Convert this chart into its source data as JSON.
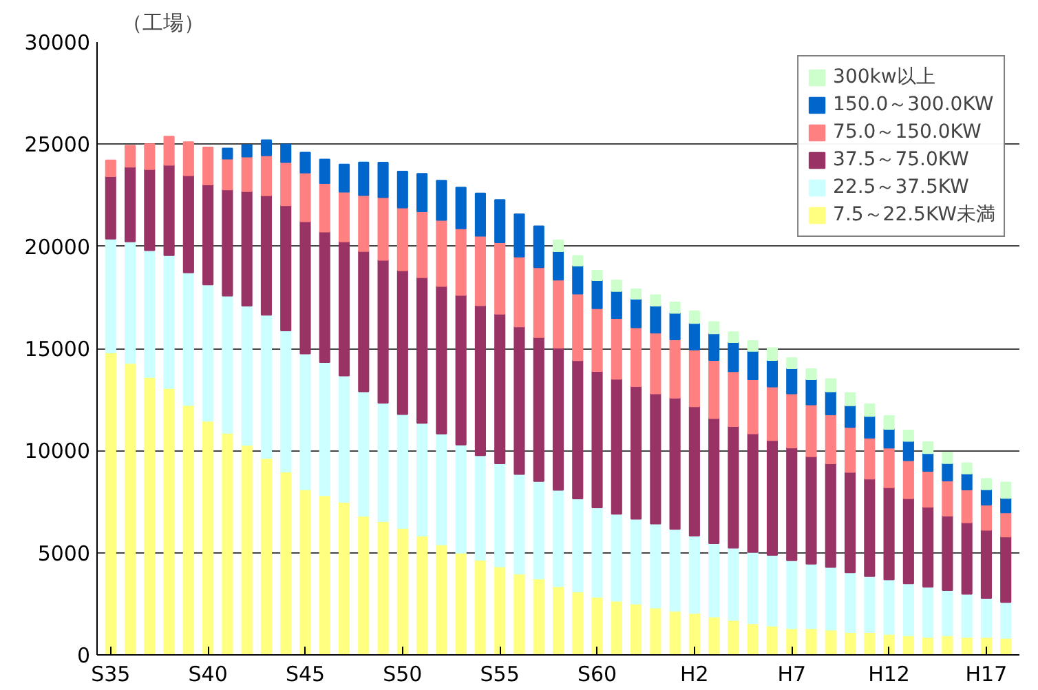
{
  "chart_data": {
    "type": "bar",
    "stacked": true,
    "ylabel": "（工場）",
    "categories": [
      "S35",
      null,
      null,
      null,
      null,
      "S40",
      null,
      null,
      null,
      null,
      "S45",
      null,
      null,
      null,
      null,
      "S50",
      null,
      null,
      null,
      null,
      "S55",
      null,
      null,
      null,
      null,
      "S60",
      null,
      null,
      null,
      null,
      "H2",
      null,
      null,
      null,
      null,
      "H7",
      null,
      null,
      null,
      null,
      "H12",
      null,
      null,
      null,
      null,
      "H17",
      null
    ],
    "ylim": [
      0,
      30000
    ],
    "yticks": [
      0,
      5000,
      10000,
      15000,
      20000,
      25000,
      30000
    ],
    "grid": "y",
    "legend": "top right",
    "series": [
      {
        "name": "7.5～22.5KW未満",
        "color": "#ffff80",
        "values": [
          14800,
          14280,
          13590,
          13050,
          12230,
          11450,
          10860,
          10270,
          9630,
          8970,
          8100,
          7810,
          7480,
          6800,
          6540,
          6210,
          5830,
          5400,
          5000,
          4650,
          4320,
          3970,
          3730,
          3350,
          3090,
          2840,
          2650,
          2500,
          2310,
          2150,
          2050,
          1870,
          1700,
          1540,
          1420,
          1300,
          1300,
          1230,
          1110,
          1110,
          1020,
          950,
          880,
          950,
          880,
          880,
          830
        ]
      },
      {
        "name": "22.5～37.5KW",
        "color": "#ccffff",
        "values": [
          5570,
          5950,
          6210,
          6510,
          6490,
          6680,
          6720,
          6820,
          7010,
          6910,
          6650,
          6520,
          6190,
          6090,
          5800,
          5570,
          5520,
          5430,
          5290,
          5120,
          5050,
          4880,
          4770,
          4720,
          4560,
          4370,
          4250,
          4160,
          4110,
          4010,
          3780,
          3590,
          3540,
          3490,
          3470,
          3330,
          3160,
          3070,
          2930,
          2740,
          2670,
          2550,
          2450,
          2220,
          2100,
          1890,
          1750
        ]
      },
      {
        "name": "37.5～75.0KW",
        "color": "#993366",
        "values": [
          3060,
          3660,
          3970,
          4420,
          4750,
          4890,
          5200,
          5600,
          5850,
          6120,
          6470,
          6380,
          6560,
          6870,
          6990,
          7040,
          7130,
          7220,
          7320,
          7340,
          7320,
          7220,
          7050,
          6960,
          6770,
          6680,
          6610,
          6490,
          6370,
          6420,
          6330,
          6130,
          5950,
          5810,
          5620,
          5520,
          5260,
          5070,
          4910,
          4770,
          4510,
          4160,
          3920,
          3640,
          3500,
          3350,
          3210
        ]
      },
      {
        "name": "75.0～150.0KW",
        "color": "#ff8080",
        "values": [
          780,
          1040,
          1230,
          1390,
          1630,
          1820,
          1510,
          1700,
          1960,
          2120,
          2380,
          2380,
          2440,
          2740,
          3070,
          3070,
          3230,
          3240,
          3260,
          3400,
          3500,
          3420,
          3420,
          3330,
          3260,
          3070,
          2970,
          2880,
          2980,
          2860,
          2780,
          2840,
          2690,
          2640,
          2620,
          2640,
          2530,
          2390,
          2200,
          2010,
          1940,
          1860,
          1750,
          1720,
          1610,
          1230,
          1180
        ]
      },
      {
        "name": "150.0～300.0KW",
        "color": "#0066cc",
        "values": [
          null,
          null,
          null,
          null,
          null,
          null,
          500,
          570,
          750,
          870,
          990,
          1160,
          1340,
          1610,
          1700,
          1770,
          1840,
          1930,
          2010,
          2080,
          2080,
          2080,
          2010,
          1390,
          1370,
          1380,
          1330,
          1400,
          1320,
          1300,
          1300,
          1300,
          1420,
          1390,
          1300,
          1230,
          1230,
          1130,
          1060,
          1060,
          920,
          950,
          870,
          850,
          780,
          750,
          710
        ]
      },
      {
        "name": "300kw以上",
        "color": "#ccffcc",
        "values": [
          null,
          null,
          null,
          null,
          null,
          null,
          null,
          null,
          null,
          null,
          null,
          null,
          null,
          null,
          null,
          null,
          null,
          null,
          null,
          null,
          null,
          null,
          null,
          550,
          480,
          470,
          520,
          470,
          520,
          520,
          590,
          570,
          500,
          500,
          590,
          520,
          520,
          620,
          620,
          590,
          640,
          520,
          550,
          520,
          520,
          520,
          760
        ]
      }
    ]
  }
}
